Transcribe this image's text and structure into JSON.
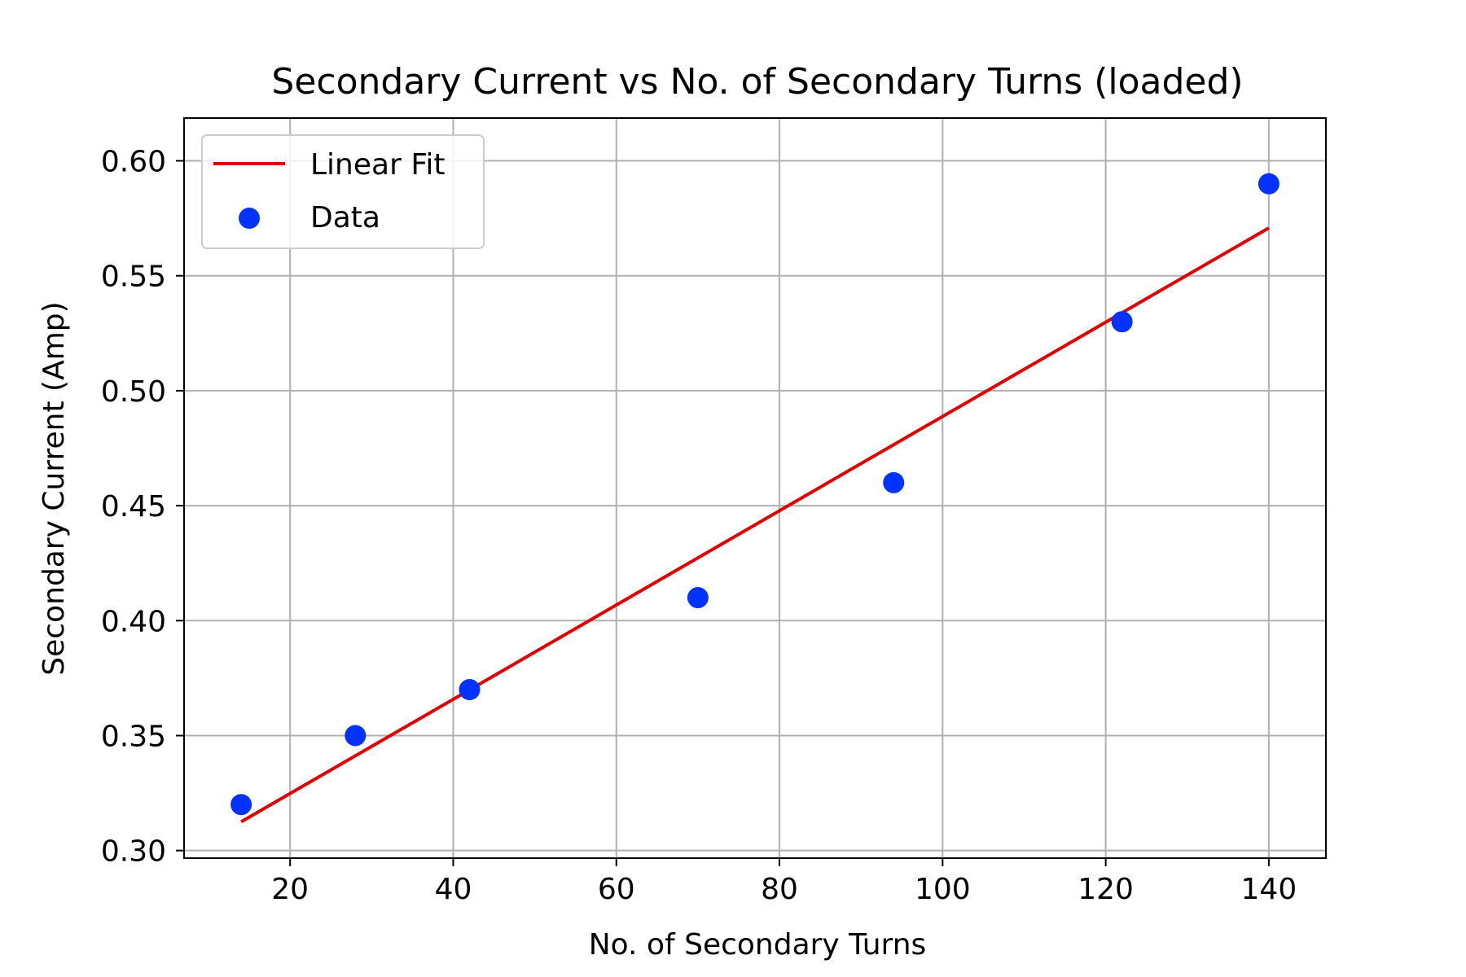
{
  "chart_data": {
    "type": "scatter",
    "title": "Secondary Current vs No. of Secondary Turns (loaded)",
    "xlabel": "No. of Secondary Turns",
    "ylabel": "Secondary Current (Amp)",
    "xlim": [
      7.0,
      147.0
    ],
    "ylim": [
      0.2967,
      0.6186
    ],
    "xticks": [
      20,
      40,
      60,
      80,
      100,
      120,
      140
    ],
    "yticks": [
      0.3,
      0.35,
      0.4,
      0.45,
      0.5,
      0.55,
      0.6
    ],
    "xtick_labels": [
      "20",
      "40",
      "60",
      "80",
      "100",
      "120",
      "140"
    ],
    "ytick_labels": [
      "0.30",
      "0.35",
      "0.40",
      "0.45",
      "0.50",
      "0.55",
      "0.60"
    ],
    "grid": true,
    "legend": {
      "position": "upper-left",
      "entries": [
        "Linear Fit",
        "Data"
      ]
    },
    "series": [
      {
        "name": "Linear Fit",
        "kind": "line",
        "color": "#e00000",
        "x": [
          14,
          140
        ],
        "y": [
          0.3125,
          0.5708
        ]
      },
      {
        "name": "Data",
        "kind": "scatter",
        "color": "#0033ff",
        "x": [
          14,
          28,
          42,
          70,
          94,
          122,
          140
        ],
        "y": [
          0.32,
          0.35,
          0.37,
          0.41,
          0.46,
          0.53,
          0.59
        ]
      }
    ]
  }
}
